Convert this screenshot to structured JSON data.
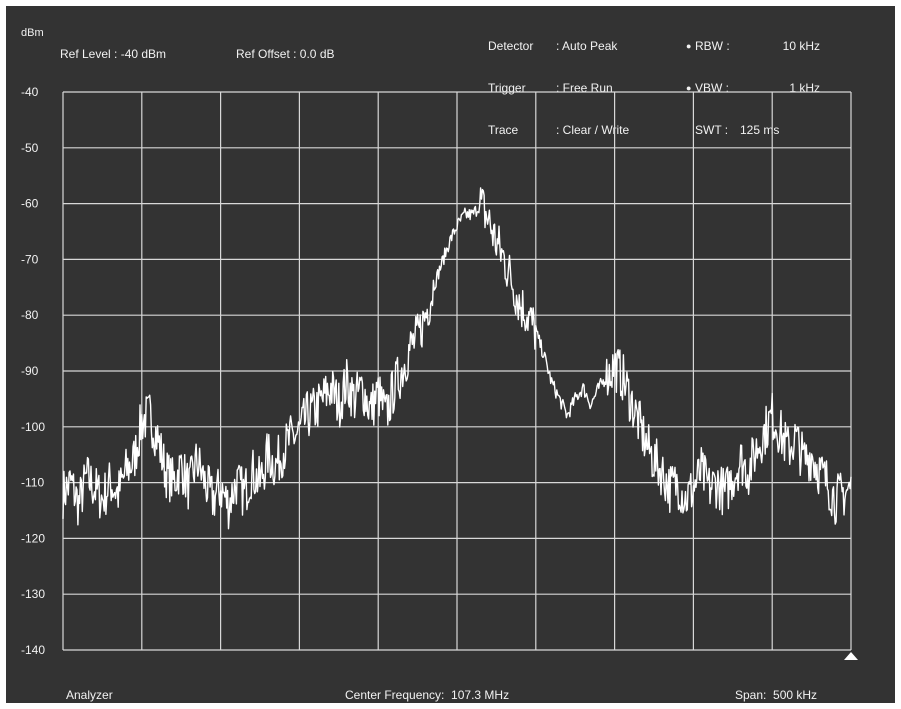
{
  "header": {
    "unit": "dBm",
    "ref_level": "Ref Level : -40 dBm",
    "ref_offset": "Ref Offset : 0.0 dB",
    "settings_left": [
      {
        "label": "Detector",
        "value": ": Auto Peak"
      },
      {
        "label": "Trigger",
        "value": ": Free Run"
      },
      {
        "label": "Trace",
        "value": ": Clear / Write"
      }
    ],
    "settings_right": [
      {
        "label": "RBW :",
        "value": "10 kHz",
        "bullet": "●"
      },
      {
        "label": "VBW :",
        "value": "1 kHz",
        "bullet": "●"
      },
      {
        "label": "SWT :",
        "value": "125 ms",
        "bullet": ""
      }
    ]
  },
  "footer": {
    "mode": "Analyzer",
    "center_frequency": "Center Frequency:  107.3 MHz",
    "span": "Span:  500 kHz"
  },
  "colors": {
    "background": "#333333",
    "grid": "#d8d8d8",
    "trace": "#ffffff",
    "text": "#f2f2f2"
  },
  "chart_data": {
    "type": "line",
    "ylabel": "dBm",
    "ylim": [
      -140,
      -40
    ],
    "yticks": [
      "-40",
      "-50",
      "-60",
      "-70",
      "-80",
      "-90",
      "-100",
      "-110",
      "-120",
      "-130",
      "-140"
    ],
    "xlim": [
      -250,
      250
    ],
    "x_unit": "kHz offset from 107.3 MHz",
    "grid": true,
    "x_divisions": 10,
    "marker": "triangle at right end of x axis",
    "series": [
      {
        "x": [
          -250,
          -245,
          -240,
          -235,
          -230,
          -225,
          -220,
          -215,
          -210,
          -205,
          -200,
          -195,
          -190,
          -185,
          -180,
          -175,
          -170,
          -165,
          -160,
          -155,
          -150,
          -145,
          -140,
          -135,
          -130,
          -125,
          -120,
          -115,
          -110,
          -105,
          -100,
          -95,
          -90,
          -85,
          -80,
          -75,
          -70,
          -65,
          -60,
          -55,
          -50,
          -45,
          -40,
          -35,
          -30,
          -25,
          -20,
          -15,
          -10,
          -5,
          0,
          5,
          10,
          15,
          20,
          25,
          30,
          35,
          40,
          45,
          50,
          55,
          60,
          65,
          70,
          75,
          80,
          85,
          90,
          95,
          100,
          105,
          110,
          115,
          120,
          125,
          130,
          135,
          140,
          145,
          150,
          155,
          160,
          165,
          170,
          175,
          180,
          185,
          190,
          195,
          200,
          205,
          210,
          215,
          220,
          225,
          230,
          235,
          240,
          245,
          250
        ],
        "values": [
          -112,
          -110,
          -114,
          -109,
          -111,
          -113,
          -110,
          -112,
          -108,
          -106,
          -99,
          -98,
          -102,
          -108,
          -110,
          -107,
          -111,
          -106,
          -110,
          -113,
          -111,
          -114,
          -110,
          -112,
          -108,
          -110,
          -105,
          -107,
          -104,
          -102,
          -101,
          -98,
          -97,
          -95,
          -93,
          -96,
          -92,
          -95,
          -93,
          -97,
          -94,
          -98,
          -93,
          -90,
          -86,
          -84,
          -80,
          -75,
          -71,
          -67,
          -64,
          -62,
          -62,
          -60,
          -63,
          -67,
          -70,
          -74,
          -78,
          -80,
          -83,
          -87,
          -92,
          -95,
          -98,
          -95,
          -93,
          -96,
          -93,
          -91,
          -89,
          -91,
          -95,
          -99,
          -103,
          -106,
          -108,
          -111,
          -110,
          -113,
          -111,
          -108,
          -111,
          -110,
          -112,
          -109,
          -106,
          -108,
          -104,
          -101,
          -98,
          -101,
          -104,
          -102,
          -106,
          -105,
          -108,
          -110,
          -113,
          -112,
          -111
        ]
      }
    ]
  }
}
